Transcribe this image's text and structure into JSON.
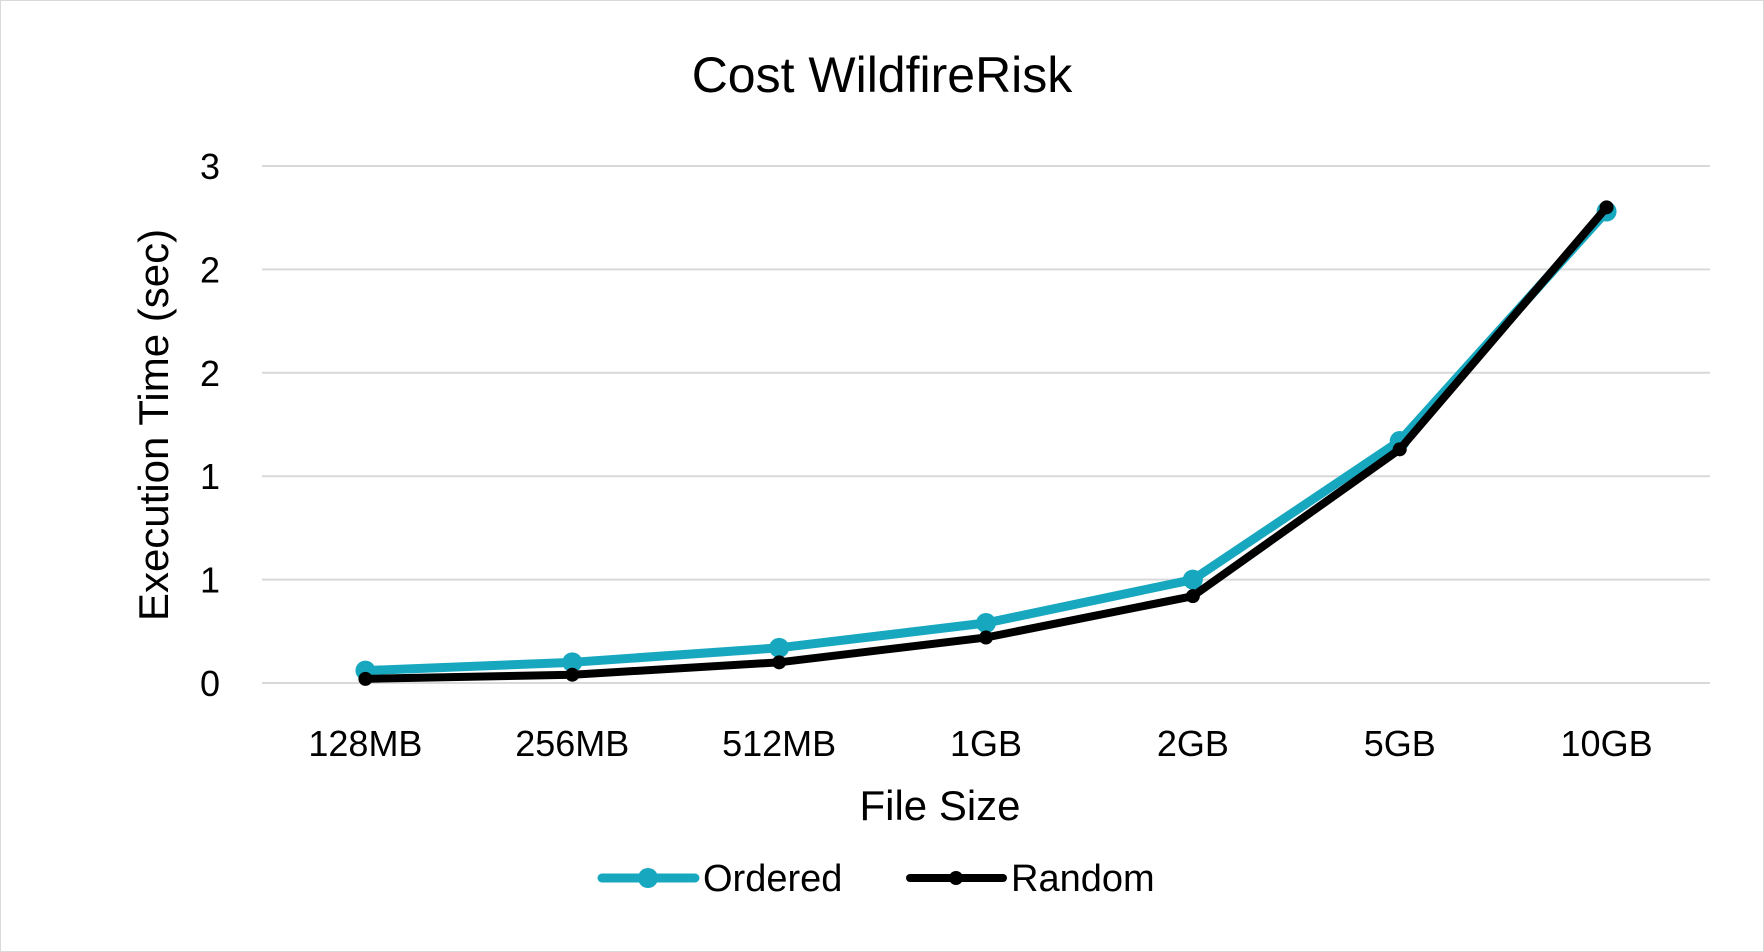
{
  "chart_data": {
    "type": "line",
    "title": "Cost WildfireRisk",
    "xlabel": "File Size",
    "ylabel": "Execution Time (sec)",
    "categories": [
      "128MB",
      "256MB",
      "512MB",
      "1GB",
      "2GB",
      "5GB",
      "10GB"
    ],
    "y_tick_labels": [
      "0",
      "1",
      "1",
      "2",
      "2",
      "3"
    ],
    "ylim": [
      0,
      2.5
    ],
    "grid": true,
    "legend_position": "bottom",
    "series": [
      {
        "name": "Ordered",
        "color": "#17a8bf",
        "values": [
          0.06,
          0.1,
          0.17,
          0.29,
          0.5,
          1.17,
          2.28
        ]
      },
      {
        "name": "Random",
        "color": "#000000",
        "values": [
          0.02,
          0.04,
          0.1,
          0.22,
          0.42,
          1.13,
          2.3
        ]
      }
    ]
  }
}
